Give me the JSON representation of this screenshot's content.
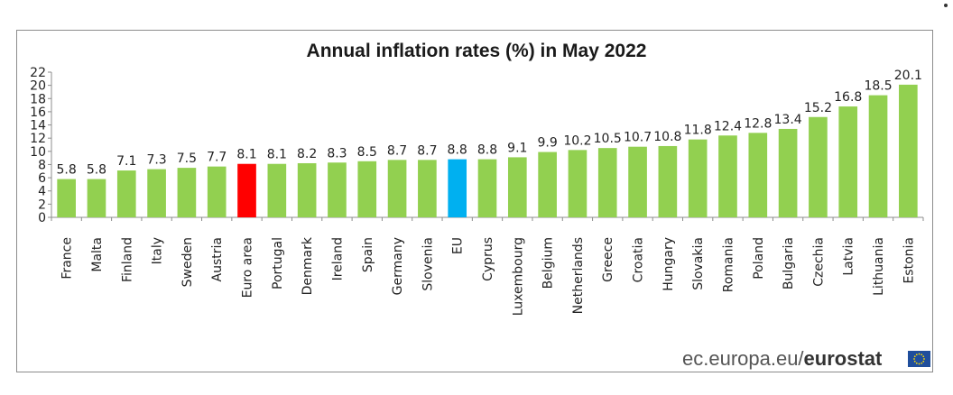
{
  "chart_data": {
    "type": "bar",
    "title": "Annual inflation rates (%) in May 2022",
    "xlabel": "",
    "ylabel": "",
    "ylim": [
      0,
      22
    ],
    "yticks": [
      "0",
      "2",
      "4",
      "6",
      "8",
      "10",
      "12",
      "14",
      "16",
      "18",
      "20",
      "22"
    ],
    "grid": false,
    "categories": [
      "France",
      "Malta",
      "Finland",
      "Italy",
      "Sweden",
      "Austria",
      "Euro area",
      "Portugal",
      "Denmark",
      "Ireland",
      "Spain",
      "Germany",
      "Slovenia",
      "EU",
      "Cyprus",
      "Luxembourg",
      "Belgium",
      "Netherlands",
      "Greece",
      "Croatia",
      "Hungary",
      "Slovakia",
      "Romania",
      "Poland",
      "Bulgaria",
      "Czechia",
      "Latvia",
      "Lithuania",
      "Estonia"
    ],
    "values": [
      5.8,
      5.8,
      7.1,
      7.3,
      7.5,
      7.7,
      8.1,
      8.1,
      8.2,
      8.3,
      8.5,
      8.7,
      8.7,
      8.8,
      8.8,
      9.1,
      9.9,
      10.2,
      10.5,
      10.7,
      10.8,
      11.8,
      12.4,
      12.8,
      13.4,
      15.2,
      16.8,
      18.5,
      20.1
    ],
    "value_labels": [
      "5.8",
      "5.8",
      "7.1",
      "7.3",
      "7.5",
      "7.7",
      "8.1",
      "8.1",
      "8.2",
      "8.3",
      "8.5",
      "8.7",
      "8.7",
      "8.8",
      "8.8",
      "9.1",
      "9.9",
      "10.2",
      "10.5",
      "10.7",
      "10.8",
      "11.8",
      "12.4",
      "12.8",
      "13.4",
      "15.2",
      "16.8",
      "18.5",
      "20.1"
    ],
    "colors": {
      "default": "#92d050",
      "highlight": {
        "Euro area": "#ff0000",
        "EU": "#00b0f0"
      }
    }
  },
  "footer": {
    "site": "ec.europa.eu/",
    "brand": "eurostat"
  },
  "colors": {
    "flag_blue": "#1f4e9c",
    "flag_stars": "#ffdd00"
  }
}
